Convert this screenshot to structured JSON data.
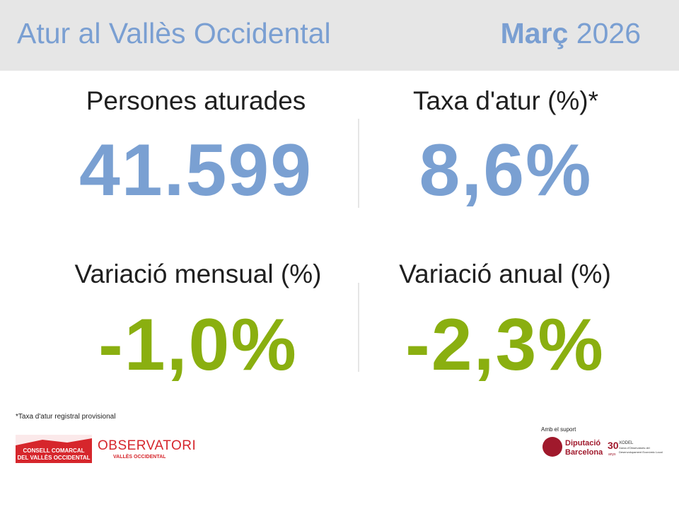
{
  "header": {
    "title": "Atur al Vallès Occidental",
    "month": "Març",
    "year": "2026"
  },
  "kpis": [
    {
      "label": "Persones aturades",
      "value": "41.599"
    },
    {
      "label": "Taxa d'atur (%)*",
      "value": "8,6%"
    },
    {
      "label": "Variació mensual (%)",
      "value": "-1,0%"
    },
    {
      "label": "Variació anual (%)",
      "value": "-2,3%"
    }
  ],
  "footnote": "*Taxa d'atur registral provisional",
  "logos": {
    "consell": [
      "CONSELL COMARCAL",
      "DEL VALLÈS OCCIDENTAL"
    ],
    "observatori": [
      "OBSERVATORI",
      "VALLÈS OCCIDENTAL"
    ],
    "support": "Amb el suport",
    "diputacio": [
      "Diputació",
      "Barcelona"
    ],
    "xodel": [
      "30",
      "anys",
      "XODEL",
      "Xarxa d'Observatoris del",
      "Desenvolupament Econòmic Local"
    ]
  }
}
